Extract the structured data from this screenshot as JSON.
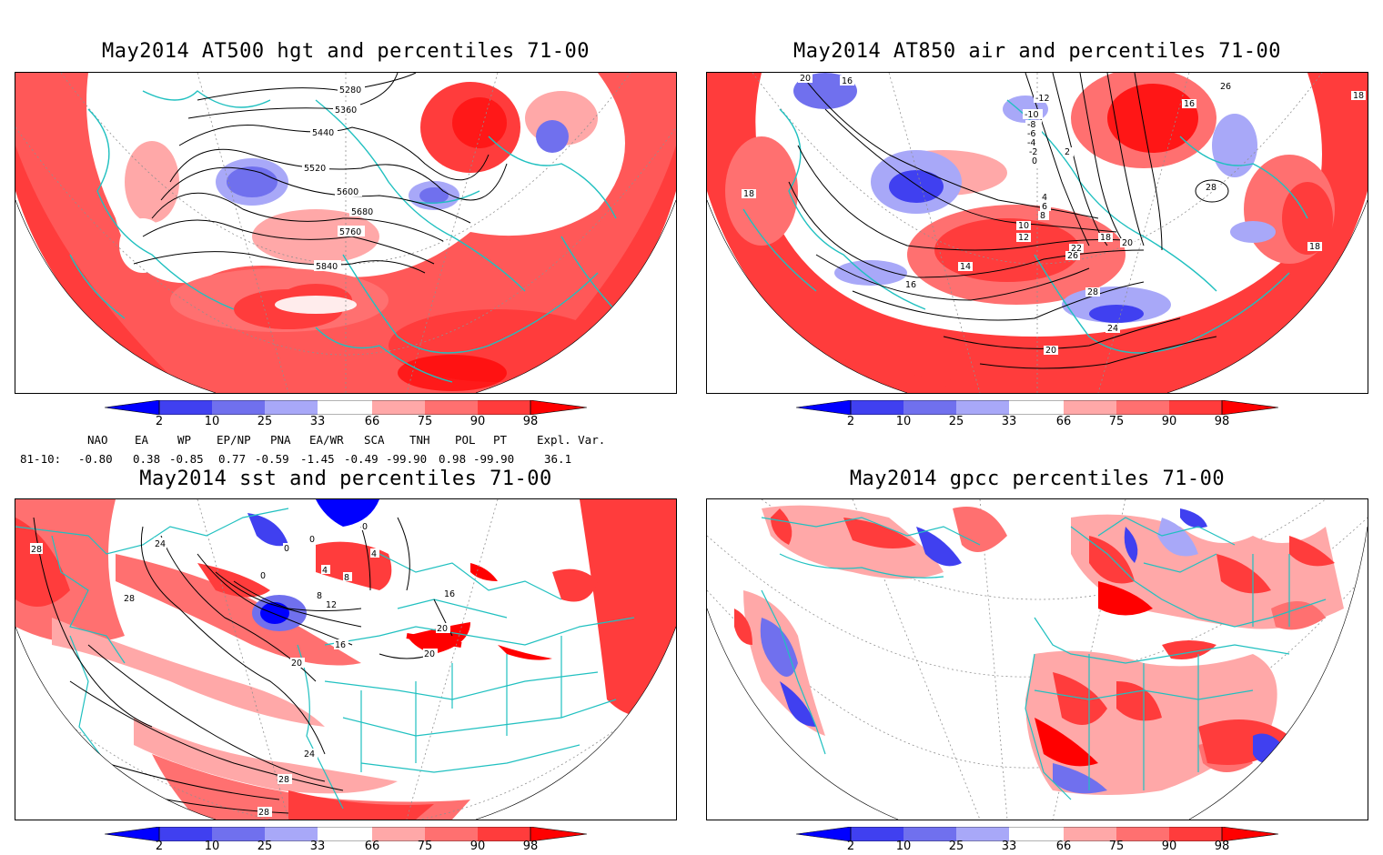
{
  "panels": {
    "hgt": {
      "title": "May2014 AT500 hgt and percentiles 71-00",
      "contour_labels": [
        "5280",
        "5360",
        "5440",
        "5520",
        "5600",
        "5680",
        "5760",
        "5840"
      ]
    },
    "air": {
      "title": "May2014 AT850 air and percentiles 71-00",
      "contour_labels": [
        "20",
        "16",
        "-12",
        "-10",
        "-8",
        "-6",
        "-4",
        "-2",
        "0",
        "2",
        "4",
        "6",
        "8",
        "10",
        "12",
        "14",
        "16",
        "18",
        "20",
        "22",
        "24",
        "26",
        "28",
        "18",
        "16",
        "20",
        "26",
        "28",
        "18",
        "18"
      ]
    },
    "sst": {
      "title": "May2014 sst and percentiles 71-00",
      "contour_labels": [
        "28",
        "24",
        "28",
        "0",
        "0",
        "0",
        "4",
        "8",
        "8",
        "12",
        "16",
        "20",
        "16",
        "20",
        "20",
        "24",
        "28",
        "28",
        "0",
        "4"
      ]
    },
    "gpcc": {
      "title": "May2014 gpcc percentiles 71-00"
    }
  },
  "colorbar": {
    "ticks": [
      "2",
      "10",
      "25",
      "33",
      "66",
      "75",
      "90",
      "98"
    ],
    "colors": {
      "deep_blue": "#0000ff",
      "blue": "#4040f0",
      "mid_blue": "#7070ee",
      "light_blue": "#a8a8f8",
      "white": "#ffffff",
      "light_red": "#ffa8a8",
      "pink_red": "#ff7070",
      "red": "#ff3c3c",
      "deep_red": "#ff0000"
    }
  },
  "indices": {
    "headers": [
      "NAO",
      "EA",
      "WP",
      "EP/NP",
      "PNA",
      "EA/WR",
      "SCA",
      "TNH",
      "POL",
      "PT",
      "Expl. Var."
    ],
    "row_label": "81-10:",
    "values": [
      "-0.80",
      "0.38",
      "-0.85",
      "0.77",
      "-0.59",
      "-1.45",
      "-0.49",
      "-99.90",
      "0.98",
      "-99.90",
      "36.1"
    ]
  },
  "map_colors": {
    "coast": "#20c0c0",
    "contour": "#000000",
    "grid": "#909090"
  }
}
